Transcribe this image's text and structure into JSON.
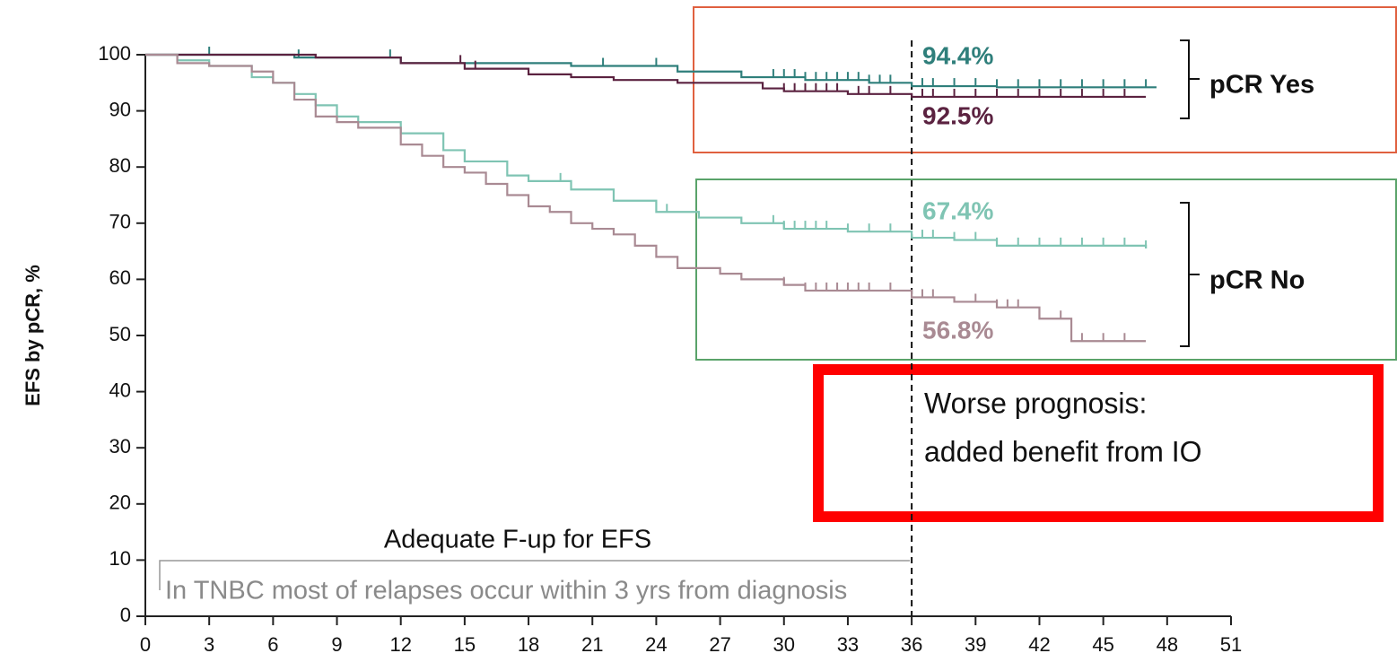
{
  "chart_data": {
    "type": "line",
    "step": true,
    "ylabel": "EFS by pCR, %",
    "xlim": [
      0,
      51
    ],
    "xticks": [
      0,
      3,
      6,
      9,
      12,
      15,
      18,
      21,
      24,
      27,
      30,
      33,
      36,
      39,
      42,
      45,
      48,
      51
    ],
    "ylim": [
      0,
      100
    ],
    "yticks": [
      0,
      10,
      20,
      30,
      40,
      50,
      60,
      70,
      80,
      90,
      100
    ],
    "series": [
      {
        "color": "#2f7f7b",
        "x": [
          0,
          7,
          12,
          20,
          25,
          28,
          31,
          34,
          36,
          40,
          47.5
        ],
        "values": [
          100,
          99.5,
          98.5,
          98,
          97,
          96,
          95.5,
          95,
          94.4,
          94.2,
          94.2
        ],
        "censored": [
          3,
          7.2,
          11.5,
          21.5,
          24,
          29.5,
          30,
          30.5,
          31,
          31.5,
          32,
          32.5,
          33,
          33.5,
          34,
          34.5,
          35,
          36.5,
          37,
          38,
          39,
          40,
          41,
          42,
          43,
          44,
          45,
          46,
          47
        ]
      },
      {
        "color": "#5b2240",
        "x": [
          0,
          8,
          12,
          15,
          18,
          20,
          22,
          25,
          29,
          30,
          33,
          36,
          40,
          47
        ],
        "values": [
          100,
          99.5,
          98.5,
          97.5,
          96.5,
          96,
          95.5,
          95,
          94,
          93.5,
          93,
          92.5,
          92.5,
          92.5
        ],
        "censored": [
          14.8,
          15.5,
          30,
          30.5,
          31,
          31.5,
          32,
          32.5,
          33.5,
          34,
          35,
          36.5,
          37,
          38,
          39,
          40,
          41,
          42,
          43,
          44,
          45,
          46
        ]
      },
      {
        "color": "#7fc4b3",
        "x": [
          0,
          1.5,
          3,
          5,
          6,
          7,
          8,
          9,
          10,
          12,
          14,
          15,
          17,
          18,
          20,
          22,
          24,
          26,
          28,
          30,
          33,
          36,
          38,
          40,
          47
        ],
        "values": [
          100,
          99,
          98,
          96,
          95,
          93,
          91,
          89,
          88,
          86,
          83,
          81,
          78.5,
          77.5,
          76,
          74,
          72,
          71,
          70,
          69,
          68.5,
          67.4,
          67,
          66,
          65.5
        ],
        "censored": [
          19.5,
          24.5,
          29.5,
          30,
          30.5,
          31,
          31.5,
          32,
          33,
          34,
          35,
          36.5,
          37,
          38,
          39,
          40,
          41,
          42,
          43,
          44,
          45,
          46,
          47
        ]
      },
      {
        "color": "#a98a93",
        "x": [
          0,
          1.5,
          3,
          5,
          6,
          7,
          8,
          9,
          10,
          12,
          13,
          14,
          15,
          16,
          17,
          18,
          19,
          20,
          21,
          22,
          23,
          24,
          25,
          27,
          28,
          30,
          31,
          36,
          38,
          40,
          42,
          43.5,
          47
        ],
        "values": [
          100,
          98.5,
          98,
          97,
          95,
          92,
          89,
          88,
          87,
          84,
          82,
          80,
          79,
          77,
          75,
          73,
          72,
          70,
          69,
          68,
          66,
          64,
          62,
          61,
          60,
          59,
          58,
          56.8,
          56,
          55,
          53,
          49,
          49
        ],
        "censored": [
          30,
          31,
          31.5,
          32,
          32.5,
          33,
          33.5,
          34,
          35,
          36.5,
          37,
          39,
          40,
          40.5,
          41,
          42,
          43,
          44,
          45,
          46
        ]
      }
    ],
    "annotations": [
      "94.4%",
      "92.5%",
      "67.4%",
      "56.8%",
      "pCR Yes",
      "pCR No",
      "Worse prognosis:",
      "added benefit from IO",
      "Adequate F-up for EFS",
      "In TNBC most of relapses occur within 3 yrs from diagnosis"
    ]
  }
}
